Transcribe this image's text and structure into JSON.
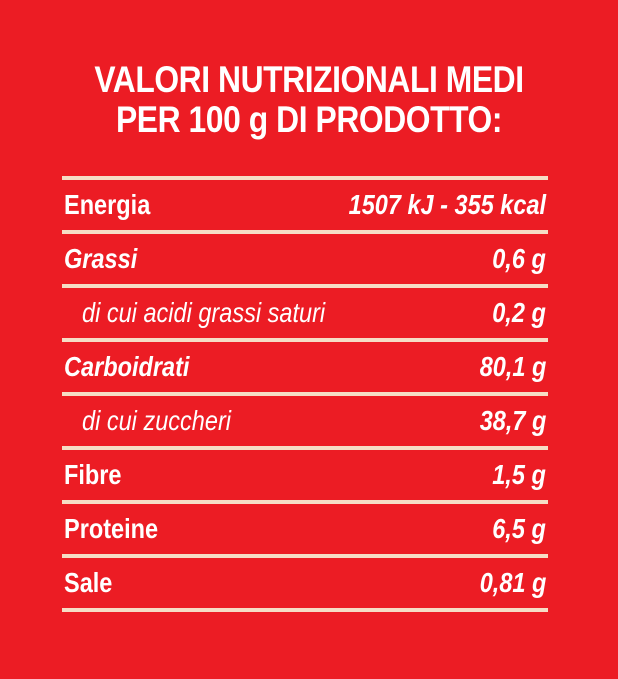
{
  "title": {
    "line1": "VALORI NUTRIZIONALI MEDI",
    "line2": "PER 100 g DI PRODOTTO:"
  },
  "rows": [
    {
      "label": "Energia",
      "value": "1507 kJ - 355 kcal"
    },
    {
      "label": "Grassi",
      "value": "0,6 g"
    },
    {
      "label": "di cui acidi grassi saturi",
      "value": "0,2 g"
    },
    {
      "label": "Carboidrati",
      "value": "80,1 g"
    },
    {
      "label": "di cui zuccheri",
      "value": "38,7 g"
    },
    {
      "label": "Fibre",
      "value": "1,5 g"
    },
    {
      "label": "Proteine",
      "value": "6,5 g"
    },
    {
      "label": "Sale",
      "value": "0,81 g"
    }
  ],
  "colors": {
    "background": "#ec1c24",
    "text": "#ffffff",
    "rule": "#f6ddc6"
  }
}
